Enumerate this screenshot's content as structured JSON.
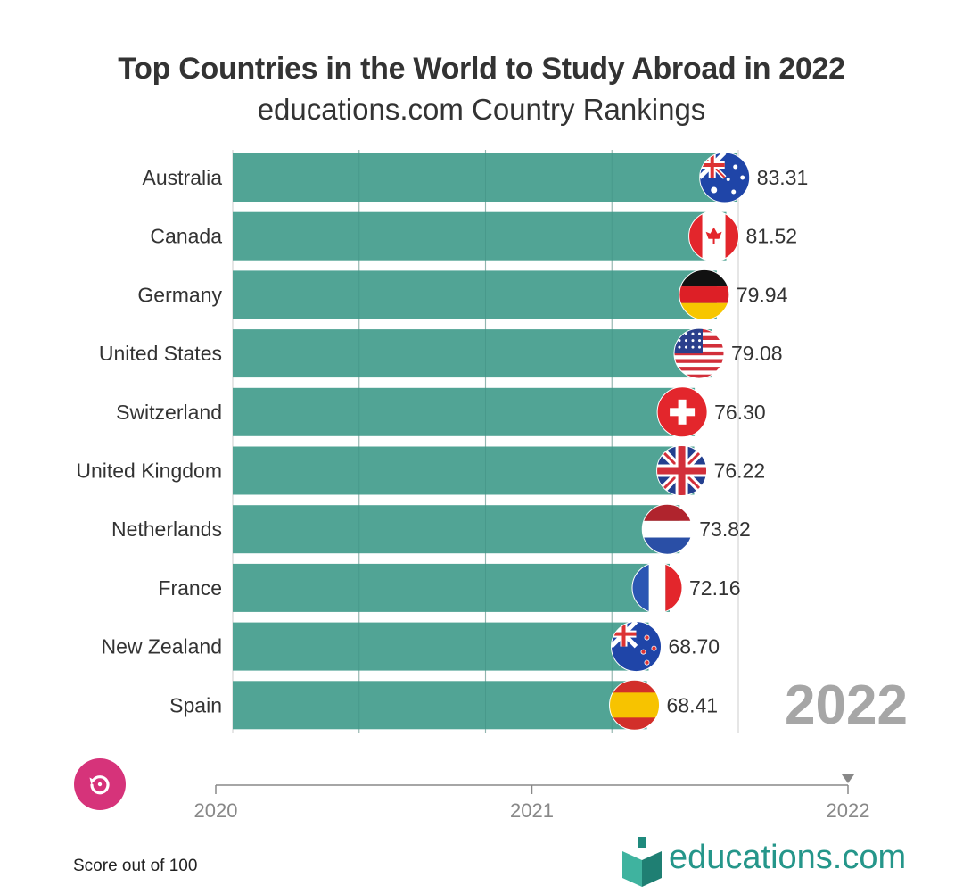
{
  "header": {
    "title": "Top Countries in the World to Study Abroad in 2022",
    "subtitle": "educations.com Country Rankings"
  },
  "chart_data": {
    "type": "bar",
    "orientation": "horizontal",
    "title": "Top Countries in the World to Study Abroad in 2022",
    "subtitle": "educations.com Country Rankings",
    "categories": [
      "Australia",
      "Canada",
      "Germany",
      "United States",
      "Switzerland",
      "United Kingdom",
      "Netherlands",
      "France",
      "New Zealand",
      "Spain"
    ],
    "values": [
      83.31,
      81.52,
      79.94,
      79.08,
      76.3,
      76.22,
      73.82,
      72.16,
      68.7,
      68.41
    ],
    "value_labels": [
      "83.31",
      "81.52",
      "79.94",
      "79.08",
      "76.30",
      "76.22",
      "73.82",
      "72.16",
      "68.70",
      "68.41"
    ],
    "flags": [
      "australia-flag-icon",
      "canada-flag-icon",
      "germany-flag-icon",
      "united-states-flag-icon",
      "switzerland-flag-icon",
      "united-kingdom-flag-icon",
      "netherlands-flag-icon",
      "france-flag-icon",
      "new-zealand-flag-icon",
      "spain-flag-icon"
    ],
    "xlim": [
      0,
      83.5
    ],
    "xlabel": "Score out of 100",
    "grid": true,
    "bar_color": "#51a495"
  },
  "year_display": "2022",
  "timeline": {
    "ticks": [
      "2020",
      "2021",
      "2022"
    ],
    "current": "2022"
  },
  "controls": {
    "replay_icon": "replay-icon"
  },
  "footer": {
    "note": "Score out of 100",
    "logo_text": "educations.com",
    "logo_icon": "book-icon"
  },
  "colors": {
    "bar": "#51a495",
    "accent": "#d6337a",
    "brand": "#25968a",
    "year": "#a6a6a6"
  }
}
